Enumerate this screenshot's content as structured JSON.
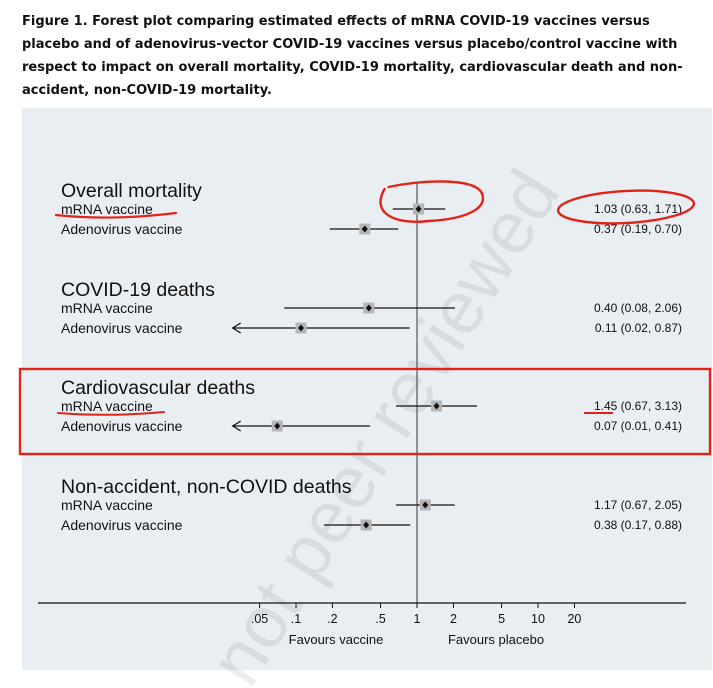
{
  "caption": "Figure 1. Forest plot comparing estimated effects of mRNA COVID-19 vaccines versus placebo and of adenovirus-vector COVID-19 vaccines versus placebo/control vaccine with respect to impact on overall mortality, COVID-19 mortality, cardiovascular death and non-accident, non-COVID-19 mortality.",
  "watermark": "not peer reviewed",
  "colors": {
    "panel": "#e9eef2",
    "annotation_red": "#e2231a",
    "box": "#b5b5b5"
  },
  "chart_data": {
    "type": "forest",
    "xscale": "log",
    "xlim": [
      0.03,
      30
    ],
    "xticks": [
      {
        "value": 0.05,
        "label": ".05"
      },
      {
        "value": 0.1,
        "label": ".1"
      },
      {
        "value": 0.2,
        "label": ".2"
      },
      {
        "value": 0.5,
        "label": ".5"
      },
      {
        "value": 1,
        "label": "1"
      },
      {
        "value": 2,
        "label": "2"
      },
      {
        "value": 5,
        "label": "5"
      },
      {
        "value": 10,
        "label": "10"
      },
      {
        "value": 20,
        "label": "20"
      }
    ],
    "reference_line": 1,
    "left_axis_label": "Favours vaccine",
    "right_axis_label": "Favours placebo",
    "groups": [
      {
        "title": "Overall mortality",
        "rows": [
          {
            "label": "mRNA vaccine",
            "est": 1.03,
            "lo": 0.63,
            "hi": 1.71,
            "text": "1.03 (0.63, 1.71)"
          },
          {
            "label": "Adenovirus vaccine",
            "est": 0.37,
            "lo": 0.19,
            "hi": 0.7,
            "text": "0.37 (0.19, 0.70)"
          }
        ]
      },
      {
        "title": "COVID-19 deaths",
        "rows": [
          {
            "label": "mRNA vaccine",
            "est": 0.4,
            "lo": 0.08,
            "hi": 2.06,
            "text": "0.40 (0.08, 2.06)"
          },
          {
            "label": "Adenovirus vaccine",
            "est": 0.11,
            "lo": 0.02,
            "hi": 0.87,
            "text": "0.11 (0.02, 0.87)"
          }
        ]
      },
      {
        "title": "Cardiovascular deaths",
        "rows": [
          {
            "label": "mRNA vaccine",
            "est": 1.45,
            "lo": 0.67,
            "hi": 3.13,
            "text": "1.45 (0.67, 3.13)"
          },
          {
            "label": "Adenovirus vaccine",
            "est": 0.07,
            "lo": 0.01,
            "hi": 0.41,
            "text": "0.07 (0.01, 0.41)"
          }
        ]
      },
      {
        "title": "Non-accident, non-COVID deaths",
        "rows": [
          {
            "label": "mRNA vaccine",
            "est": 1.17,
            "lo": 0.67,
            "hi": 2.05,
            "text": "1.17 (0.67, 2.05)"
          },
          {
            "label": "Adenovirus vaccine",
            "est": 0.38,
            "lo": 0.17,
            "hi": 0.88,
            "text": "0.38 (0.17, 0.88)"
          }
        ]
      }
    ]
  }
}
